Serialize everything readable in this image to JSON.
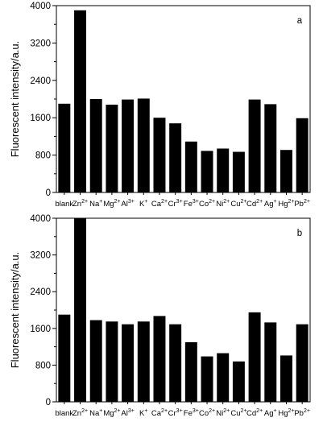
{
  "chart_data": [
    {
      "type": "bar",
      "panel_label": "a",
      "ylabel": "Fluorescent intensity/a.u.",
      "xlabel": "",
      "ylim": [
        0,
        4000
      ],
      "yticks": [
        0,
        800,
        1600,
        2400,
        3200,
        4000
      ],
      "grid": false,
      "legend": "none",
      "bar_color": "#000000",
      "categories": [
        "blank",
        "Zn2+",
        "Na+",
        "Mg2+",
        "Al3+",
        "K+",
        "Ca2+",
        "Cr3+",
        "Fe3+",
        "Co2+",
        "Ni2+",
        "Cu2+",
        "Cd2+",
        "Ag+",
        "Hg2+",
        "Pb2+"
      ],
      "category_labels": [
        {
          "base": "blank",
          "sup": ""
        },
        {
          "base": "Zn",
          "sup": "2+"
        },
        {
          "base": "Na",
          "sup": "+"
        },
        {
          "base": "Mg",
          "sup": "2+"
        },
        {
          "base": "Al",
          "sup": "3+"
        },
        {
          "base": "K",
          "sup": "+"
        },
        {
          "base": "Ca",
          "sup": "2+"
        },
        {
          "base": "Cr",
          "sup": "3+"
        },
        {
          "base": "Fe",
          "sup": "3+"
        },
        {
          "base": "Co",
          "sup": "2+"
        },
        {
          "base": "Ni",
          "sup": "2+"
        },
        {
          "base": "Cu",
          "sup": "2+"
        },
        {
          "base": "Cd",
          "sup": "2+"
        },
        {
          "base": "Ag",
          "sup": "+"
        },
        {
          "base": "Hg",
          "sup": "2+"
        },
        {
          "base": "Pb",
          "sup": "2+"
        }
      ],
      "values": [
        1900,
        3900,
        2000,
        1880,
        1990,
        2010,
        1600,
        1480,
        1090,
        890,
        940,
        870,
        1990,
        1890,
        910,
        1590
      ]
    },
    {
      "type": "bar",
      "panel_label": "b",
      "ylabel": "Fluorescent intensity/a.u.",
      "xlabel": "",
      "ylim": [
        0,
        4000
      ],
      "yticks": [
        0,
        800,
        1600,
        2400,
        3200,
        4000
      ],
      "grid": false,
      "legend": "none",
      "bar_color": "#000000",
      "categories": [
        "blank",
        "Zn2+",
        "Na+",
        "Mg2+",
        "Al3+",
        "K+",
        "Ca2+",
        "Cr3+",
        "Fe3+",
        "Co2+",
        "Ni2+",
        "Cu2+",
        "Cd2+",
        "Ag+",
        "Hg2+",
        "Pb2+"
      ],
      "category_labels": [
        {
          "base": "blank",
          "sup": ""
        },
        {
          "base": "Zn",
          "sup": "2+"
        },
        {
          "base": "Na",
          "sup": "+"
        },
        {
          "base": "Mg",
          "sup": "2+"
        },
        {
          "base": "Al",
          "sup": "3+"
        },
        {
          "base": "K",
          "sup": "+"
        },
        {
          "base": "Ca",
          "sup": "2+"
        },
        {
          "base": "Cr",
          "sup": "3+"
        },
        {
          "base": "Fe",
          "sup": "3+"
        },
        {
          "base": "Co",
          "sup": "2+"
        },
        {
          "base": "Ni",
          "sup": "2+"
        },
        {
          "base": "Cu",
          "sup": "2+"
        },
        {
          "base": "Cd",
          "sup": "2+"
        },
        {
          "base": "Ag",
          "sup": "+"
        },
        {
          "base": "Hg",
          "sup": "2+"
        },
        {
          "base": "Pb",
          "sup": "2+"
        }
      ],
      "values": [
        1900,
        4000,
        1780,
        1750,
        1690,
        1750,
        1870,
        1690,
        1300,
        990,
        1060,
        880,
        1950,
        1730,
        1010,
        1690
      ]
    }
  ]
}
